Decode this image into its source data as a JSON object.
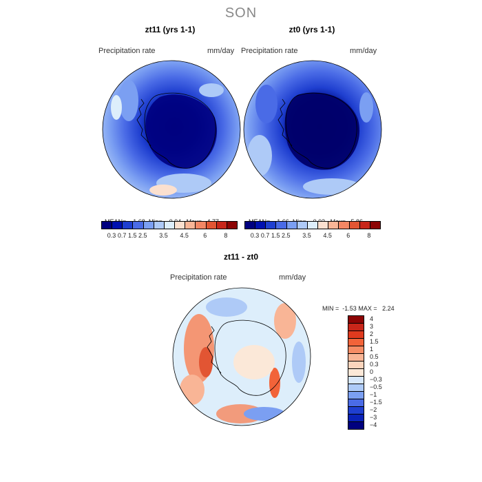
{
  "figure": {
    "title": "SON"
  },
  "panels": [
    {
      "title": "zt11 (yrs 1-1)",
      "variable": "Precipitation rate",
      "units": "mm/day",
      "stats": {
        "mean_label": "MEAN=",
        "mean": "1.68",
        "min_label": "Min=",
        "min": "0.04",
        "max_label": "Max=",
        "max": "4.77"
      }
    },
    {
      "title": "zt0 (yrs 1-1)",
      "variable": "Precipitation rate",
      "units": "mm/day",
      "stats": {
        "mean_label": "MEAN=",
        "mean": "1.66",
        "min_label": "Min=",
        "min": "0.03",
        "max_label": "Max=",
        "max": "5.86"
      }
    },
    {
      "title": "zt11 - zt0",
      "variable": "Precipitation rate",
      "units": "mm/day",
      "stats": {
        "min_label": "MIN =",
        "min": "-1.53",
        "max_label": "MAX =",
        "max": "2.24"
      }
    }
  ],
  "colorbar_abs": {
    "colors": [
      "#00007f",
      "#0010b0",
      "#1f3fd0",
      "#4a6be6",
      "#7b9ff2",
      "#aecaf7",
      "#ddeefb",
      "#fbe0cf",
      "#f9b596",
      "#f38764",
      "#e25533",
      "#c8261a",
      "#8c0404"
    ],
    "ticks": [
      "0.3",
      "0.7",
      "1.5",
      "2.5",
      "3.5",
      "4.5",
      "6",
      "8"
    ]
  },
  "colorbar_diff": {
    "colors": [
      "#8c0404",
      "#c8261a",
      "#e03a1e",
      "#f26339",
      "#f68c65",
      "#f9b596",
      "#fbd4bc",
      "#fbe8d8",
      "#d7e7fb",
      "#aecaf7",
      "#7b9ff2",
      "#4a6be6",
      "#1f3fd0",
      "#0a22b8",
      "#00007f"
    ],
    "labels": [
      "4",
      "3",
      "2",
      "1.5",
      "1",
      "0.5",
      "0.3",
      "0",
      "−0.3",
      "−0.5",
      "−1",
      "−1.5",
      "−2",
      "−3",
      "−4"
    ]
  }
}
